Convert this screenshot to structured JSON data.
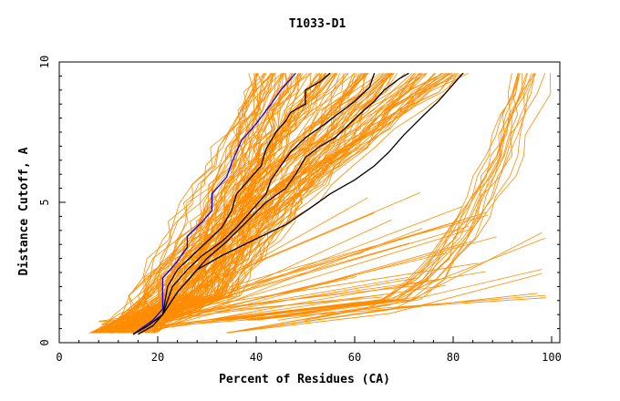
{
  "chart_data": {
    "type": "line",
    "title": "T1033-D1",
    "xlabel": "Percent of Residues (CA)",
    "ylabel": "Distance Cutoff, A",
    "xlim": [
      0,
      100
    ],
    "ylim": [
      0,
      10
    ],
    "x_ticks": [
      0,
      20,
      40,
      60,
      80,
      100
    ],
    "y_ticks": [
      0,
      5,
      10
    ],
    "grid": false,
    "colors": {
      "background_models": "#ff8c00",
      "highlight_black": "#000000",
      "highlight_blue": "#0000ff",
      "frame": "#000000"
    },
    "series": [
      {
        "color": "#0000ff",
        "x": [
          15,
          19,
          21,
          21,
          21,
          24,
          26,
          26,
          29,
          31,
          31,
          34,
          35,
          37,
          40,
          43,
          45,
          48
        ],
        "y": [
          0.3,
          0.8,
          1.2,
          1.8,
          2.3,
          2.9,
          3.4,
          3.8,
          4.3,
          4.7,
          5.3,
          5.9,
          6.4,
          7.2,
          7.8,
          8.5,
          9.0,
          9.6
        ]
      },
      {
        "color": "#000000",
        "x": [
          15,
          18,
          21,
          22,
          24,
          27,
          30,
          33,
          35,
          36,
          39,
          41,
          42,
          44,
          46,
          47,
          50,
          50,
          53,
          55
        ],
        "y": [
          0.3,
          0.6,
          1.0,
          2.0,
          2.6,
          3.1,
          3.6,
          4.1,
          4.7,
          5.3,
          5.9,
          6.3,
          6.9,
          7.5,
          7.9,
          8.2,
          8.5,
          9.0,
          9.3,
          9.6
        ]
      },
      {
        "color": "#000000",
        "x": [
          15,
          18,
          21,
          23,
          26,
          29,
          33,
          36,
          39,
          42,
          43,
          45,
          47,
          50,
          54,
          57,
          60,
          63,
          64
        ],
        "y": [
          0.3,
          0.6,
          1.0,
          2.0,
          2.6,
          3.1,
          3.6,
          4.1,
          4.7,
          5.3,
          5.8,
          6.3,
          6.8,
          7.3,
          7.8,
          8.2,
          8.6,
          9.1,
          9.6
        ]
      },
      {
        "color": "#000000",
        "x": [
          15,
          18,
          21,
          24,
          27,
          30,
          34,
          38,
          42,
          46,
          48,
          50,
          53,
          56,
          59,
          62,
          64,
          66,
          69,
          71
        ],
        "y": [
          0.3,
          0.6,
          1.0,
          1.8,
          2.4,
          3.0,
          3.6,
          4.3,
          5.0,
          5.5,
          6.0,
          6.6,
          7.0,
          7.3,
          7.8,
          8.3,
          8.6,
          9.0,
          9.4,
          9.6
        ]
      },
      {
        "color": "#000000",
        "x": [
          16,
          19,
          21,
          24,
          28,
          33,
          40,
          46,
          51,
          55,
          60,
          64,
          67,
          70,
          74,
          77,
          79,
          82
        ],
        "y": [
          0.3,
          0.6,
          1.0,
          1.8,
          2.6,
          3.1,
          3.7,
          4.2,
          4.8,
          5.3,
          5.8,
          6.3,
          6.8,
          7.4,
          8.1,
          8.6,
          9.0,
          9.6
        ]
      }
    ]
  }
}
